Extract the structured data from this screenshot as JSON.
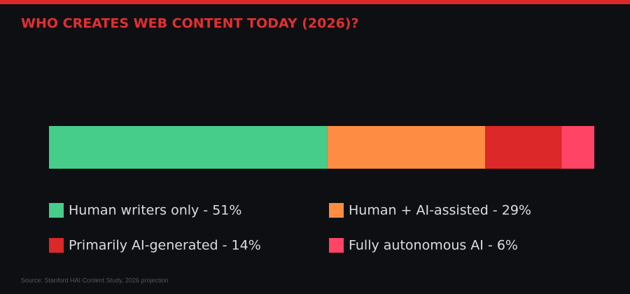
{
  "chart_data": {
    "type": "stacked_bar",
    "orientation": "horizontal",
    "title": "WHO CREATES WEB CONTENT TODAY (2026)?",
    "xlim": [
      0,
      100
    ],
    "series": [
      {
        "name": "Human writers only - 51%",
        "color": "#46cd8a",
        "values": [
          51
        ]
      },
      {
        "name": "Human + AI-assisted - 29%",
        "color": "#ff8c42",
        "values": [
          29
        ]
      },
      {
        "name": "Primarily AI-generated - 14%",
        "color": "#dc2828",
        "values": [
          14
        ]
      },
      {
        "name": "Fully autonomous AI - 6%",
        "color": "#ff4466",
        "values": [
          6
        ]
      }
    ],
    "source": "Source: Stanford HAI Content Study, 2026 projection"
  }
}
